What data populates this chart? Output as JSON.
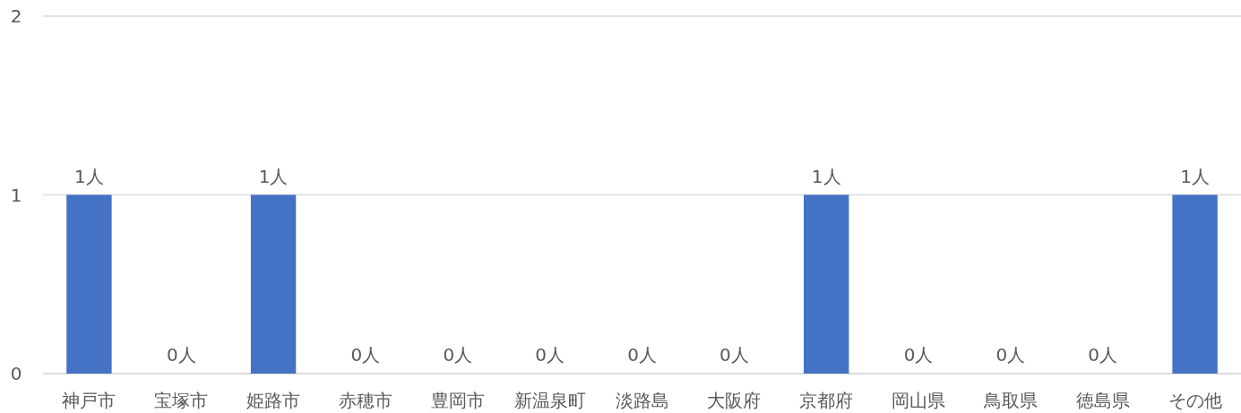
{
  "chart_data": {
    "type": "bar",
    "categories": [
      "神戸市",
      "宝塚市",
      "姫路市",
      "赤穂市",
      "豊岡市",
      "新温泉町",
      "淡路島",
      "大阪府",
      "京都府",
      "岡山県",
      "鳥取県",
      "徳島県",
      "その他"
    ],
    "values": [
      1,
      0,
      1,
      0,
      0,
      0,
      0,
      0,
      1,
      0,
      0,
      0,
      1
    ],
    "value_labels": [
      "1人",
      "0人",
      "1人",
      "0人",
      "0人",
      "0人",
      "0人",
      "0人",
      "1人",
      "0人",
      "0人",
      "0人",
      "1人"
    ],
    "color": "#4472c4",
    "ylim": [
      0,
      2
    ],
    "yticks": [
      0,
      1,
      2
    ],
    "grid": "y"
  }
}
